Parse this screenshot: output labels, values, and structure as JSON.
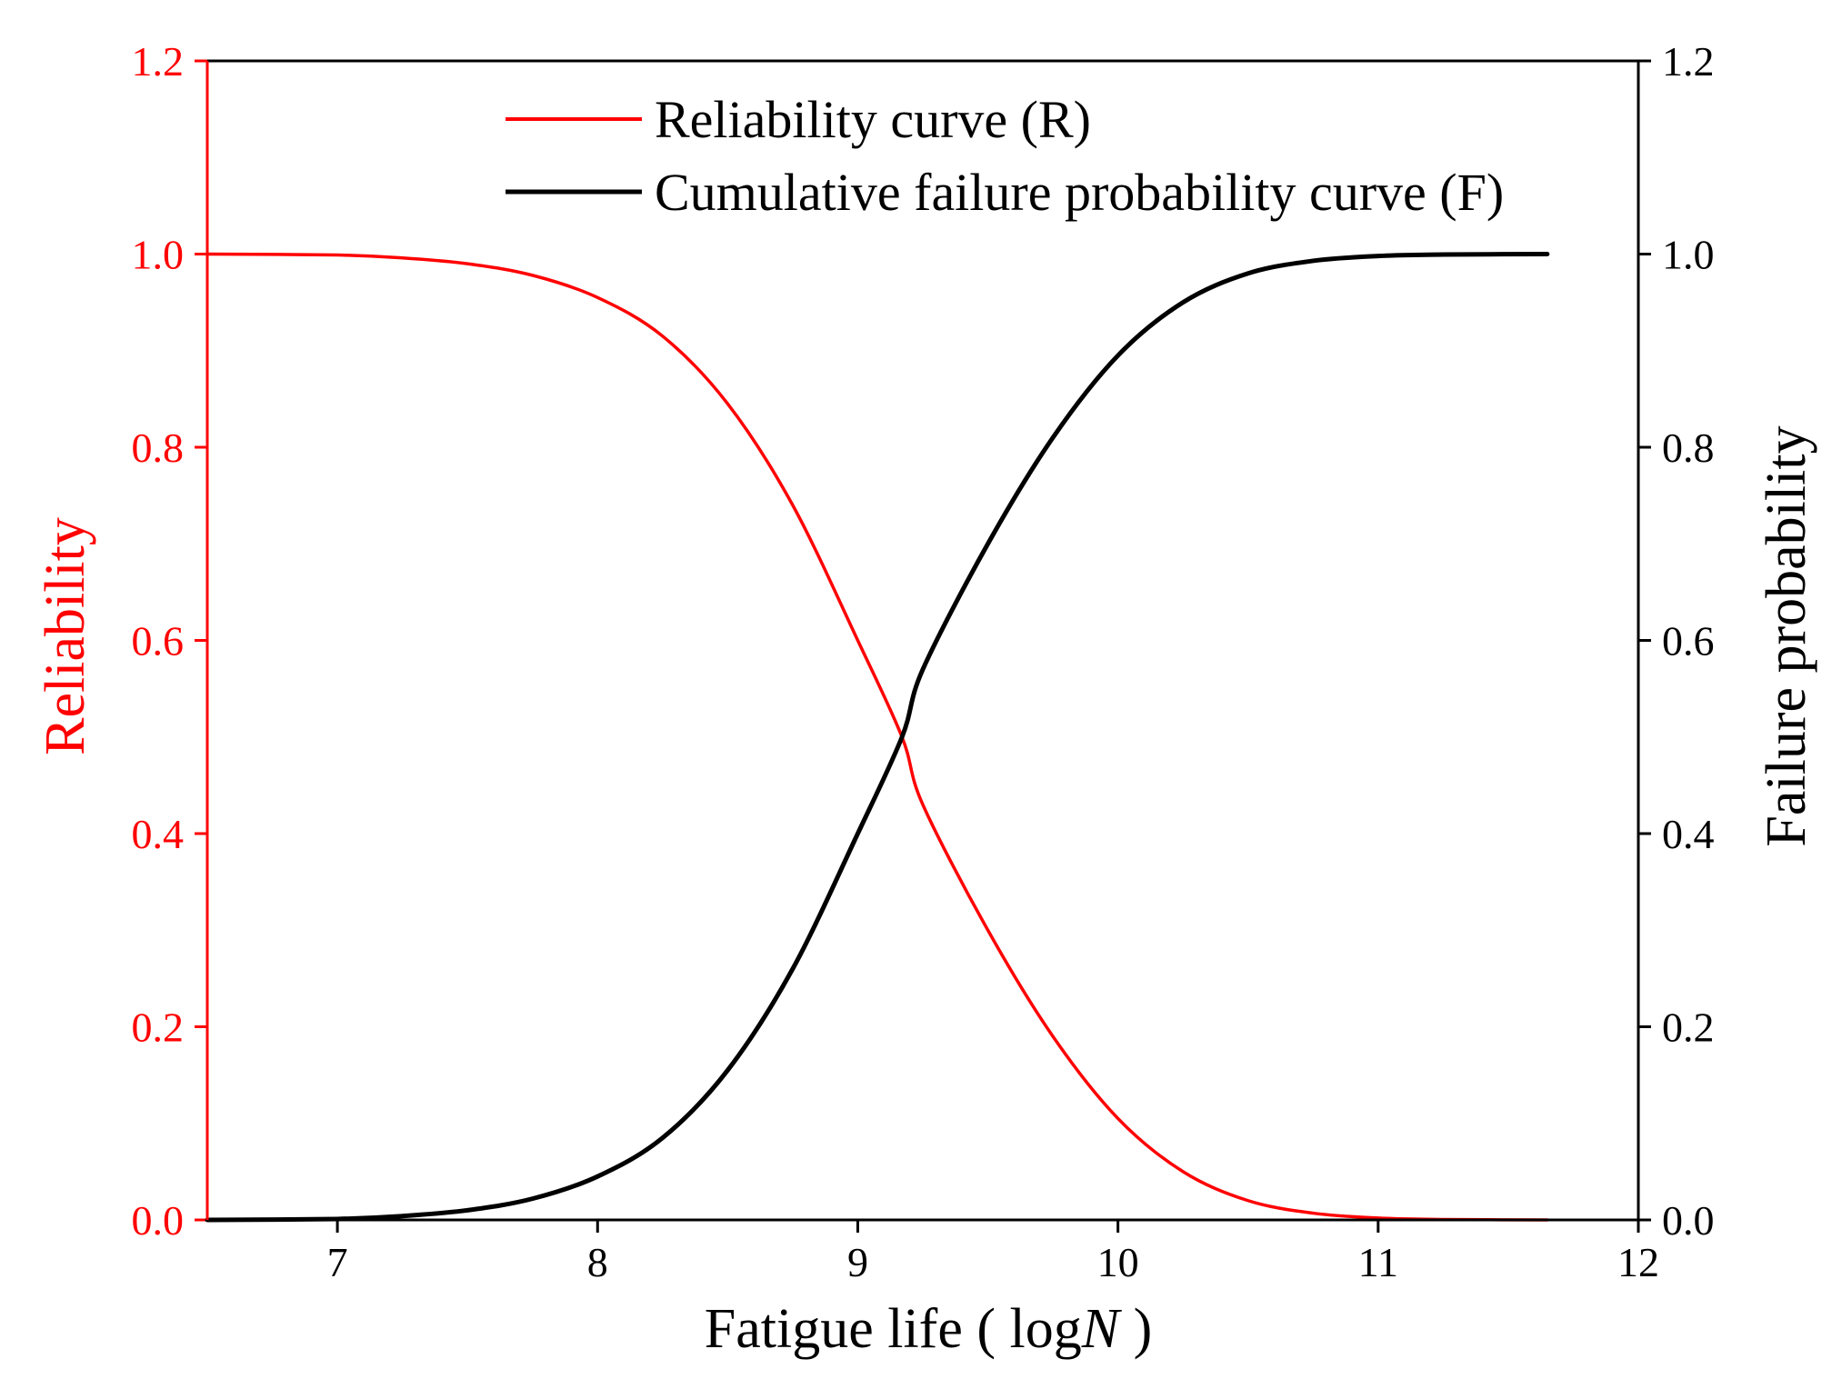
{
  "colors": {
    "reliability": "#ff0000",
    "failure": "#000000",
    "frame": "#000000"
  },
  "chart_data": {
    "type": "line",
    "xlabel_prefix": "Fatigue life ( log",
    "xlabel_italic": "N",
    "xlabel_suffix": " )",
    "ylabel_left": "Reliability",
    "ylabel_right": "Failure probability",
    "xlim": [
      6.5,
      12
    ],
    "ylim": [
      0,
      1.2
    ],
    "x_ticks": [
      7,
      8,
      9,
      10,
      11,
      12
    ],
    "x_tick_labels": [
      "7",
      "8",
      "9",
      "10",
      "11",
      "12"
    ],
    "y_ticks": [
      0,
      0.2,
      0.4,
      0.6,
      0.8,
      1.0,
      1.2
    ],
    "y_tick_labels": [
      "0.0",
      "0.2",
      "0.4",
      "0.6",
      "0.8",
      "1.0",
      "1.2"
    ],
    "legend_position": "top-right",
    "series": [
      {
        "name": "Reliability curve (R)",
        "axis": "left",
        "color_key": "reliability",
        "x": [
          6.5,
          7.0,
          7.25,
          7.5,
          7.75,
          8.0,
          8.25,
          8.5,
          8.75,
          9.0,
          9.17,
          9.25,
          9.5,
          9.75,
          10.0,
          10.25,
          10.5,
          10.75,
          11.0,
          11.25,
          11.65
        ],
        "y": [
          1.0,
          0.999,
          0.996,
          0.99,
          0.978,
          0.955,
          0.915,
          0.845,
          0.74,
          0.6,
          0.5,
          0.43,
          0.3,
          0.19,
          0.105,
          0.05,
          0.02,
          0.007,
          0.002,
          0.0005,
          0.0
        ]
      },
      {
        "name": "Cumulative failure probability curve (F)",
        "axis": "right",
        "color_key": "failure",
        "x": [
          6.5,
          7.0,
          7.25,
          7.5,
          7.75,
          8.0,
          8.25,
          8.5,
          8.75,
          9.0,
          9.17,
          9.25,
          9.5,
          9.75,
          10.0,
          10.25,
          10.5,
          10.75,
          11.0,
          11.25,
          11.65
        ],
        "y": [
          0.0,
          0.001,
          0.004,
          0.01,
          0.022,
          0.045,
          0.085,
          0.155,
          0.26,
          0.4,
          0.5,
          0.57,
          0.7,
          0.81,
          0.895,
          0.95,
          0.98,
          0.993,
          0.998,
          0.9995,
          1.0
        ]
      }
    ]
  }
}
